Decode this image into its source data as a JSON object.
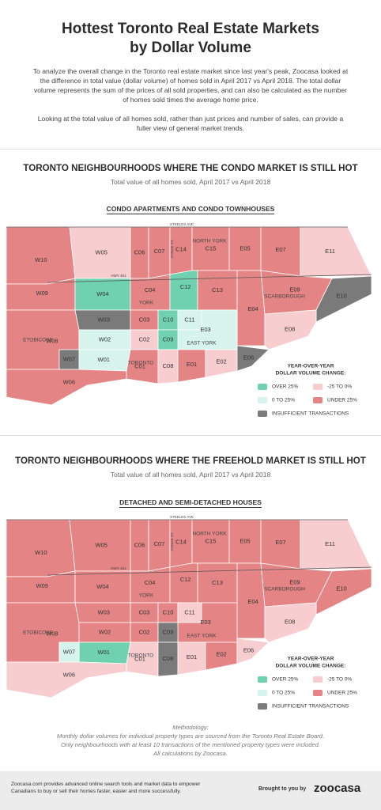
{
  "header": {
    "title_lines": [
      "Hottest Toronto Real Estate Markets",
      "by Dollar Volume"
    ],
    "intro": [
      "To analyze the overall change in the Toronto real estate market since last year's peak, Zoocasa looked at the difference in total value (dollar volume) of homes sold in April 2017 vs April 2018. The total dollar volume represents the sum of the prices of all sold properties, and can also be calculated as the number of homes sold times the average home price.",
      "Looking at the total value of all homes sold, rather than just prices and number of sales, can provide a fuller view of general market trends."
    ]
  },
  "sections": [
    {
      "title": "TORONTO NEIGHBOURHOODS WHERE THE CONDO MARKET IS STILL HOT",
      "subtitle": "Total value of all homes sold, April 2017 vs April 2018",
      "map_title": "CONDO APARTMENTS AND CONDO TOWNHOUSES",
      "landmarks": [
        "STEELES AVE",
        "HWY 401",
        "YONGE ST",
        "NORTH YORK",
        "YORK",
        "EAST YORK",
        "SCARBOROUGH",
        "ETOBICOKE",
        "TORONTO"
      ],
      "districts": [
        {
          "label": "W10",
          "color": "#e58484"
        },
        {
          "label": "W05",
          "color": "#f7cdd0"
        },
        {
          "label": "C06",
          "color": "#e58484"
        },
        {
          "label": "C07",
          "color": "#e58484"
        },
        {
          "label": "C14",
          "color": "#e58484"
        },
        {
          "label": "C15",
          "color": "#e58484"
        },
        {
          "label": "E05",
          "color": "#e58484"
        },
        {
          "label": "E07",
          "color": "#e58484"
        },
        {
          "label": "E11",
          "color": "#f7cdd0"
        },
        {
          "label": "W09",
          "color": "#e58484"
        },
        {
          "label": "W04",
          "color": "#6fd1b0"
        },
        {
          "label": "C04",
          "color": "#e58484"
        },
        {
          "label": "C12",
          "color": "#6fd1b0"
        },
        {
          "label": "C13",
          "color": "#e58484"
        },
        {
          "label": "E04",
          "color": "#e58484"
        },
        {
          "label": "E09",
          "color": "#e58484"
        },
        {
          "label": "E10",
          "color": "#7a7a7a"
        },
        {
          "label": "W08",
          "color": "#e58484"
        },
        {
          "label": "W03",
          "color": "#7a7a7a"
        },
        {
          "label": "C03",
          "color": "#e58484"
        },
        {
          "label": "C10",
          "color": "#6fd1b0"
        },
        {
          "label": "C11",
          "color": "#d6f3ec"
        },
        {
          "label": "E03",
          "color": "#d6f3ec"
        },
        {
          "label": "E08",
          "color": "#f7cdd0"
        },
        {
          "label": "W02",
          "color": "#d6f3ec"
        },
        {
          "label": "C02",
          "color": "#f7cdd0"
        },
        {
          "label": "C09",
          "color": "#6fd1b0"
        },
        {
          "label": "W01",
          "color": "#d6f3ec"
        },
        {
          "label": "W07",
          "color": "#7a7a7a"
        },
        {
          "label": "C01",
          "color": "#e58484"
        },
        {
          "label": "C08",
          "color": "#f7cdd0"
        },
        {
          "label": "E01",
          "color": "#e58484"
        },
        {
          "label": "E02",
          "color": "#f7cdd0"
        },
        {
          "label": "E06",
          "color": "#7a7a7a"
        },
        {
          "label": "W06",
          "color": "#e58484"
        }
      ],
      "legend": {
        "title_lines": [
          "YEAR-OVER-YEAR",
          "DOLLAR VOLUME CHANGE:"
        ],
        "items": [
          {
            "label": "OVER 25%",
            "color": "#6fd1b0"
          },
          {
            "label": "-25 TO 0%",
            "color": "#f7cdd0"
          },
          {
            "label": "0 TO 25%",
            "color": "#d6f3ec"
          },
          {
            "label": "UNDER 25%",
            "color": "#e58484"
          },
          {
            "label": "INSUFFICIENT TRANSACTIONS",
            "color": "#7a7a7a"
          }
        ]
      }
    },
    {
      "title": "TORONTO NEIGHBOURHOODS WHERE THE FREEHOLD MARKET IS STILL HOT",
      "subtitle": "Total value of all homes sold, April 2017 vs April 2018",
      "map_title": "DETACHED AND SEMI-DETACHED HOUSES",
      "landmarks": [
        "STEELES AVE",
        "HWY 401",
        "YONGE ST",
        "NORTH YORK",
        "YORK",
        "EAST YORK",
        "SCARBOROUGH",
        "ETOBICOKE",
        "TORONTO"
      ],
      "districts": [
        {
          "label": "W10",
          "color": "#e58484"
        },
        {
          "label": "W05",
          "color": "#e58484"
        },
        {
          "label": "C06",
          "color": "#e58484"
        },
        {
          "label": "C07",
          "color": "#e58484"
        },
        {
          "label": "C14",
          "color": "#e58484"
        },
        {
          "label": "C15",
          "color": "#e58484"
        },
        {
          "label": "E05",
          "color": "#e58484"
        },
        {
          "label": "E07",
          "color": "#e58484"
        },
        {
          "label": "E11",
          "color": "#f7cdd0"
        },
        {
          "label": "W09",
          "color": "#e58484"
        },
        {
          "label": "W04",
          "color": "#e58484"
        },
        {
          "label": "C04",
          "color": "#e58484"
        },
        {
          "label": "C12",
          "color": "#e58484"
        },
        {
          "label": "C13",
          "color": "#e58484"
        },
        {
          "label": "E04",
          "color": "#e58484"
        },
        {
          "label": "E09",
          "color": "#e58484"
        },
        {
          "label": "E10",
          "color": "#e58484"
        },
        {
          "label": "W08",
          "color": "#e58484"
        },
        {
          "label": "W03",
          "color": "#e58484"
        },
        {
          "label": "C03",
          "color": "#e58484"
        },
        {
          "label": "C10",
          "color": "#e58484"
        },
        {
          "label": "C11",
          "color": "#f7cdd0"
        },
        {
          "label": "E03",
          "color": "#e58484"
        },
        {
          "label": "E08",
          "color": "#f7cdd0"
        },
        {
          "label": "W02",
          "color": "#e58484"
        },
        {
          "label": "C02",
          "color": "#e58484"
        },
        {
          "label": "C09",
          "color": "#7a7a7a"
        },
        {
          "label": "W01",
          "color": "#6fd1b0"
        },
        {
          "label": "W07",
          "color": "#d6f3ec"
        },
        {
          "label": "C01",
          "color": "#f7cdd0"
        },
        {
          "label": "C08",
          "color": "#7a7a7a"
        },
        {
          "label": "E01",
          "color": "#f7cdd0"
        },
        {
          "label": "E02",
          "color": "#e58484"
        },
        {
          "label": "E06",
          "color": "#f7cdd0"
        },
        {
          "label": "W06",
          "color": "#f7cdd0"
        }
      ],
      "legend": {
        "title_lines": [
          "YEAR-OVER-YEAR",
          "DOLLAR VOLUME CHANGE:"
        ],
        "items": [
          {
            "label": "OVER 25%",
            "color": "#6fd1b0"
          },
          {
            "label": "-25 TO 0%",
            "color": "#f7cdd0"
          },
          {
            "label": "0 TO 25%",
            "color": "#d6f3ec"
          },
          {
            "label": "UNDER 25%",
            "color": "#e58484"
          },
          {
            "label": "INSUFFICIENT TRANSACTIONS",
            "color": "#7a7a7a"
          }
        ]
      }
    }
  ],
  "methodology": {
    "heading": "Methodology:",
    "lines": [
      "Monthly dollar volumes for individual property types are sourced from the Toronto Real Estate Board.",
      "Only neighbourhoods with at least 10 transactions of the mentioned property types were included.",
      "All calculations by Zoocasa."
    ]
  },
  "footer": {
    "text": "Zoocasa.com provides advanced online search tools and market data to empower Canadians to buy or sell their homes faster, easier and more successfully.",
    "brought_by": "Brought to you by",
    "brand": "zoocasa"
  }
}
